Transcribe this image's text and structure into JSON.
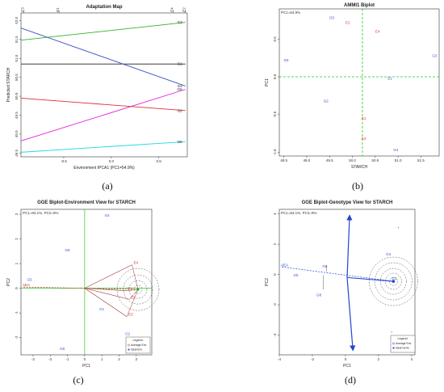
{
  "panel_captions": [
    "(a)",
    "(b)",
    "(c)",
    "(d)"
  ],
  "chart_data": [
    {
      "type": "line",
      "title": "Adaptation Map",
      "xlabel": "Environment IPCA1 (PC1=54.9%)",
      "ylabel": "Predicted STARCH",
      "xlim": [
        -0.95,
        0.8
      ],
      "ylim": [
        48.4,
        52.2
      ],
      "x_ticks": [
        "-0.5",
        "0.0",
        "0.5"
      ],
      "y_ticks": [
        "48.5",
        "49.0",
        "49.5",
        "50.0",
        "50.5",
        "51.0",
        "51.5",
        "52.0"
      ],
      "top_env_markers": [
        {
          "label": "E3",
          "x": -0.92
        },
        {
          "label": "E1",
          "x": -0.55
        },
        {
          "label": "E4",
          "x": 0.65
        },
        {
          "label": "E2",
          "x": 0.78
        }
      ],
      "series": [
        {
          "name": "G3",
          "color": "#2db52d",
          "x": [
            -0.95,
            0.78
          ],
          "y": [
            51.48,
            51.95
          ]
        },
        {
          "name": "G1",
          "color": "#222222",
          "x": [
            -0.95,
            0.78
          ],
          "y": [
            50.85,
            50.85
          ]
        },
        {
          "name": "G4",
          "color": "#3a52c8",
          "x": [
            -0.95,
            0.78
          ],
          "y": [
            51.8,
            50.27
          ]
        },
        {
          "name": "G6",
          "color": "#e020e0",
          "x": [
            -0.95,
            0.78
          ],
          "y": [
            48.82,
            50.18
          ]
        },
        {
          "name": "G2",
          "color": "#e03030",
          "x": [
            -0.95,
            0.78
          ],
          "y": [
            49.95,
            49.62
          ]
        },
        {
          "name": "G5",
          "color": "#20d8e0",
          "x": [
            -0.95,
            0.78
          ],
          "y": [
            48.52,
            48.8
          ]
        }
      ]
    },
    {
      "type": "scatter",
      "title": "AMMI1 Biplot",
      "subtitle": "PC1=54.9%",
      "xlabel": "STARCH",
      "ylabel": "PC1",
      "xlim": [
        48.4,
        51.9
      ],
      "ylim": [
        -1.05,
        0.9
      ],
      "x_ticks": [
        "48.5",
        "49.0",
        "49.5",
        "50.0",
        "50.5",
        "51.0",
        "51.5"
      ],
      "y_ticks": [
        "-1.0",
        "-0.5",
        "0.0",
        "0.5"
      ],
      "reference_lines": {
        "x": 50.22,
        "y": 0.0,
        "color": "#22cc22"
      },
      "genotypes": [
        {
          "label": "G6",
          "x": 48.55,
          "y": 0.22
        },
        {
          "label": "G5",
          "x": 49.55,
          "y": 0.78
        },
        {
          "label": "G2",
          "x": 49.42,
          "y": -0.32
        },
        {
          "label": "G1",
          "x": 50.82,
          "y": -0.02
        },
        {
          "label": "G3",
          "x": 51.8,
          "y": 0.28
        },
        {
          "label": "G4",
          "x": 50.95,
          "y": -0.97
        }
      ],
      "environments": [
        {
          "label": "E2",
          "x": 49.9,
          "y": 0.72
        },
        {
          "label": "E4",
          "x": 50.55,
          "y": 0.6
        },
        {
          "label": "E1",
          "x": 50.25,
          "y": -0.55
        },
        {
          "label": "E3",
          "x": 50.25,
          "y": -0.82
        }
      ]
    },
    {
      "type": "scatter",
      "title": "GGE Biplot-Environment View for STARCH",
      "subtitle": "PC1=84.1%,  PC2=9%",
      "xlabel": "PC1",
      "ylabel": "PC2",
      "xlim": [
        -3.7,
        3.9
      ],
      "ylim": [
        -2.7,
        3.2
      ],
      "x_ticks": [
        "-3",
        "-2",
        "-1",
        "0",
        "1",
        "2",
        "3"
      ],
      "y_ticks": [
        "-2",
        "-1",
        "0",
        "1",
        "2",
        "3"
      ],
      "genotypes": [
        {
          "label": "G4",
          "x": 1.3,
          "y": 2.95
        },
        {
          "label": "G6",
          "x": -1.0,
          "y": 1.55
        },
        {
          "label": "G5",
          "x": -3.2,
          "y": 0.35
        },
        {
          "label": "G1",
          "x": 1.0,
          "y": -0.85
        },
        {
          "label": "G2",
          "x": 2.5,
          "y": -1.85
        },
        {
          "label": "G8",
          "x": -1.3,
          "y": -2.45
        }
      ],
      "environments": [
        {
          "label": "E4",
          "x": 2.75,
          "y": 0.95
        },
        {
          "label": "E1",
          "x": 2.4,
          "y": -0.1
        },
        {
          "label": "E2",
          "x": 2.6,
          "y": -0.45
        },
        {
          "label": "E3",
          "x": 2.45,
          "y": -1.15
        }
      ],
      "ideal_env": {
        "x": 3.1,
        "y": -0.05
      },
      "aea_label": "AEA",
      "legend": {
        "title": "Legend:",
        "items": [
          "Average Env",
          "Ideal Env"
        ],
        "position": "bottom-right"
      }
    },
    {
      "type": "scatter",
      "title": "GGE Biplot-Genotype View for STARCH",
      "subtitle": "PC1=84.1%,  PC2=9%",
      "xlabel": "PC1",
      "ylabel": "PC2",
      "xlim": [
        -4.0,
        4.2
      ],
      "ylim": [
        -5.3,
        4.3
      ],
      "x_ticks": [
        "-4",
        "-2",
        "0",
        "2",
        "4"
      ],
      "y_ticks": [
        "-4",
        "-2",
        "0",
        "2",
        "4"
      ],
      "genotypes": [
        {
          "label": "G6",
          "x": -1.25,
          "y": 0.55
        },
        {
          "label": "G5",
          "x": -3.0,
          "y": -0.05
        },
        {
          "label": "G8",
          "x": -1.6,
          "y": -1.35
        },
        {
          "label": "G4",
          "x": 2.6,
          "y": 1.35
        },
        {
          "label": "G1",
          "x": 2.95,
          "y": -0.25
        }
      ],
      "ideal_genotype": {
        "x": 2.9,
        "y": -0.45
      },
      "aea_label": "AEA",
      "legend": {
        "title": "Legend:",
        "items": [
          "Average Env",
          "Ideal Gene"
        ],
        "position": "bottom-right"
      }
    }
  ]
}
